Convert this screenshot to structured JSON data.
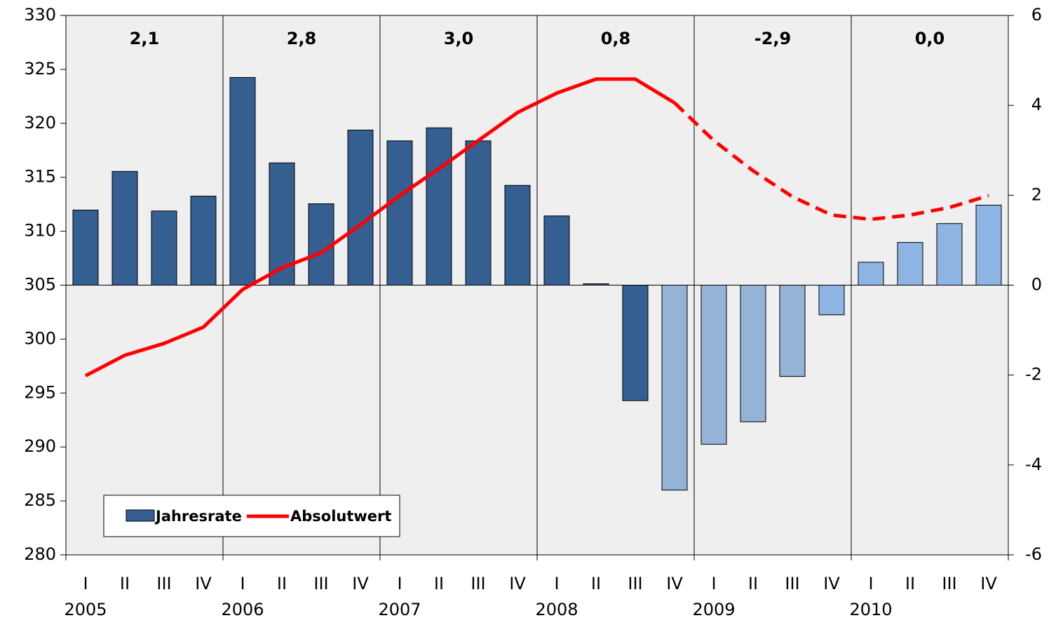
{
  "chart_data": {
    "type": "bar",
    "categories": [
      "I",
      "II",
      "III",
      "IV",
      "I",
      "II",
      "III",
      "IV",
      "I",
      "II",
      "III",
      "IV",
      "I",
      "II",
      "III",
      "IV",
      "I",
      "II",
      "III",
      "IV",
      "I",
      "II",
      "III",
      "IV"
    ],
    "years": [
      "2005",
      "2006",
      "2007",
      "2008",
      "2009",
      "2010"
    ],
    "annual_rates": {
      "values": [
        2.1,
        2.8,
        3.0,
        0.8,
        -2.9,
        0.0
      ],
      "value_labels": [
        "2,1",
        "2,8",
        "3,0",
        "0,8",
        "-2,9",
        "0,0"
      ]
    },
    "series": [
      {
        "name": "Jahresrate",
        "type": "bar",
        "axis": "y2",
        "color": "#355e91",
        "colors": [
          "#355e91",
          "#355e91",
          "#355e91",
          "#355e91",
          "#355e91",
          "#355e91",
          "#355e91",
          "#355e91",
          "#355e91",
          "#355e91",
          "#355e91",
          "#355e91",
          "#355e91",
          "#355e91",
          "#355e91",
          "#95b3d7",
          "#95b3d7",
          "#95b3d7",
          "#95b3d7",
          "#8db4e2",
          "#8db4e2",
          "#8db4e2",
          "#8db4e2",
          "#8db4e2"
        ],
        "values": [
          1.67,
          2.53,
          1.65,
          1.98,
          4.62,
          2.72,
          1.81,
          3.45,
          3.21,
          3.5,
          3.21,
          2.22,
          1.54,
          0.03,
          -2.57,
          -4.56,
          -3.54,
          -3.04,
          -2.03,
          -0.66,
          0.51,
          0.95,
          1.37,
          1.78
        ]
      },
      {
        "name": "Absolutwert",
        "type": "line",
        "color": "#ff0000",
        "dashed_from": 15,
        "values": [
          296.6,
          298.5,
          299.6,
          301.1,
          304.6,
          306.6,
          308.0,
          310.6,
          313.3,
          315.8,
          318.4,
          321.0,
          322.8,
          324.1,
          324.1,
          321.9,
          318.4,
          315.6,
          313.2,
          311.5,
          311.1,
          311.5,
          312.2,
          313.3
        ]
      }
    ],
    "ylim": [
      280,
      330
    ],
    "yticks": [
      280,
      285,
      290,
      295,
      300,
      305,
      310,
      315,
      320,
      325,
      330
    ],
    "y2lim": [
      -6,
      6
    ],
    "y2ticks": [
      -6,
      -4,
      -2,
      0,
      2,
      4,
      6
    ],
    "legend": "lower left"
  }
}
